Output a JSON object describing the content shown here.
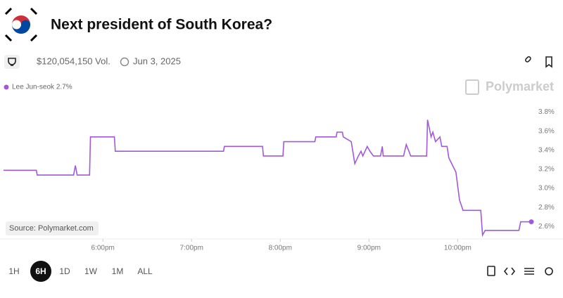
{
  "header": {
    "title": "Next president of South Korea?",
    "volume": "$120,054,150 Vol.",
    "date": "Jun 3, 2025",
    "brand": "Polymarket"
  },
  "source": "Source: Polymarket.com",
  "ranges": [
    "1H",
    "6H",
    "1D",
    "1W",
    "1M",
    "ALL"
  ],
  "selected_range": "6H",
  "chart_data": {
    "type": "line",
    "legend": "Lee Jun-seok 2.7%",
    "x": [
      16.88,
      17.25,
      17.26,
      17.67,
      17.69,
      17.71,
      17.85,
      17.86,
      18.13,
      18.14,
      19.36,
      19.37,
      19.8,
      19.81,
      20.03,
      20.04,
      20.39,
      20.4,
      20.63,
      20.64,
      20.7,
      20.71,
      20.8,
      20.84,
      20.88,
      20.91,
      20.93,
      20.98,
      21.01,
      21.05,
      21.13,
      21.15,
      21.16,
      21.39,
      21.42,
      21.45,
      21.47,
      21.65,
      21.66,
      21.7,
      21.72,
      21.75,
      21.8,
      21.82,
      21.88,
      21.9,
      21.98,
      22.02,
      22.06,
      22.26,
      22.28,
      22.31,
      22.69,
      22.71,
      22.83
    ],
    "series": [
      {
        "name": "Lee Jun-seok",
        "color": "#a259d9",
        "values": [
          3.19,
          3.19,
          3.14,
          3.14,
          3.24,
          3.14,
          3.14,
          3.54,
          3.54,
          3.39,
          3.39,
          3.44,
          3.44,
          3.34,
          3.34,
          3.49,
          3.49,
          3.54,
          3.54,
          3.59,
          3.59,
          3.54,
          3.49,
          3.26,
          3.34,
          3.39,
          3.34,
          3.44,
          3.39,
          3.34,
          3.34,
          3.44,
          3.34,
          3.34,
          3.46,
          3.39,
          3.34,
          3.34,
          3.72,
          3.54,
          3.59,
          3.49,
          3.54,
          3.44,
          3.44,
          3.32,
          3.17,
          2.88,
          2.77,
          2.77,
          2.51,
          2.56,
          2.56,
          2.65,
          2.65
        ]
      }
    ],
    "xlim": [
      16.88,
      22.83
    ],
    "xticks": [
      {
        "value": 18,
        "label": "6:00pm"
      },
      {
        "value": 19,
        "label": "7:00pm"
      },
      {
        "value": 20,
        "label": "8:00pm"
      },
      {
        "value": 21,
        "label": "9:00pm"
      },
      {
        "value": 22,
        "label": "10:00pm"
      }
    ],
    "ylim": [
      2.47,
      3.87
    ],
    "yticks": [
      {
        "value": 2.6,
        "label": "2.6%"
      },
      {
        "value": 2.8,
        "label": "2.8%"
      },
      {
        "value": 3.0,
        "label": "3.0%"
      },
      {
        "value": 3.2,
        "label": "3.2%"
      },
      {
        "value": 3.4,
        "label": "3.4%"
      },
      {
        "value": 3.6,
        "label": "3.6%"
      },
      {
        "value": 3.8,
        "label": "3.8%"
      }
    ],
    "grid": false
  }
}
